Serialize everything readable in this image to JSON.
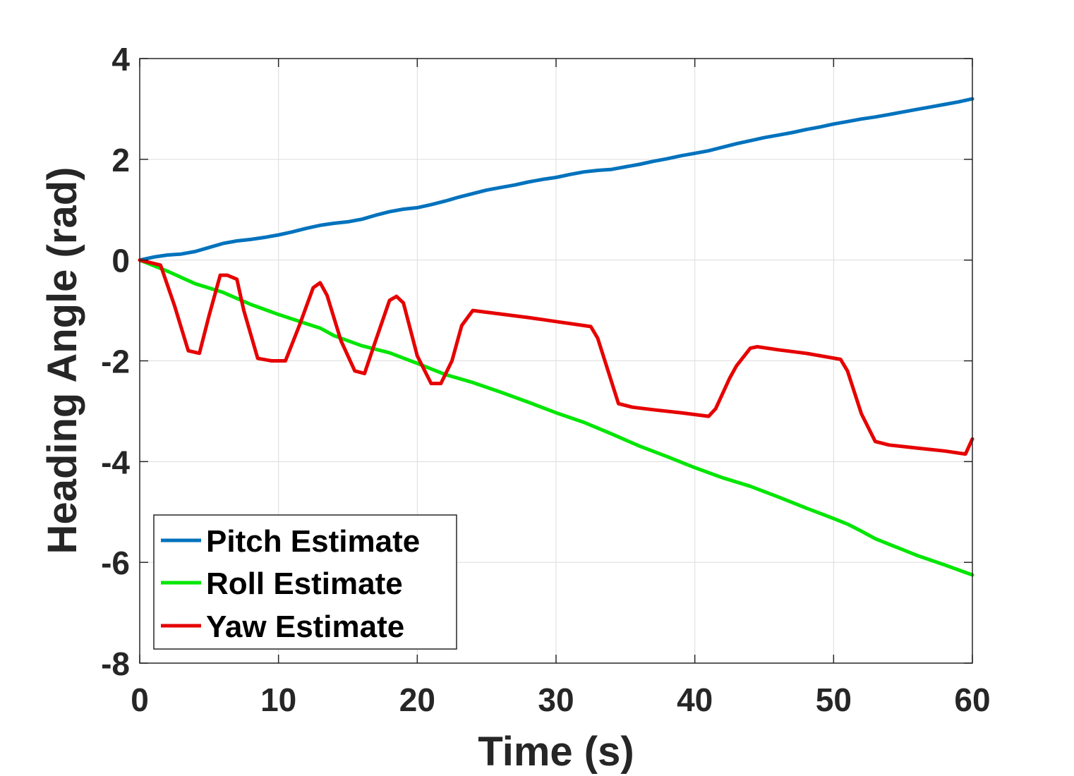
{
  "chart_data": {
    "type": "line",
    "xlabel": "Time (s)",
    "ylabel": "Heading Angle (rad)",
    "xlim": [
      0,
      60
    ],
    "ylim": [
      -8,
      4
    ],
    "xticks": [
      0,
      10,
      20,
      30,
      40,
      50,
      60
    ],
    "yticks": [
      -8,
      -6,
      -4,
      -2,
      0,
      2,
      4
    ],
    "xtick_labels": [
      "0",
      "10",
      "20",
      "30",
      "40",
      "50",
      "60"
    ],
    "ytick_labels": [
      "-8",
      "-6",
      "-4",
      "-2",
      "0",
      "2",
      "4"
    ],
    "grid": true,
    "legend_position": "bottom-left",
    "series": [
      {
        "name": "Pitch Estimate",
        "color": "#0072BD",
        "x": [
          0,
          1,
          2,
          3,
          4,
          5,
          6,
          7,
          8,
          9,
          10,
          11,
          12,
          13,
          14,
          15,
          16,
          17,
          18,
          19,
          20,
          21,
          22,
          23,
          24,
          25,
          26,
          27,
          28,
          29,
          30,
          31,
          32,
          33,
          34,
          35,
          36,
          37,
          38,
          39,
          40,
          41,
          42,
          43,
          44,
          45,
          46,
          47,
          48,
          49,
          50,
          51,
          52,
          53,
          54,
          55,
          56,
          57,
          58,
          59,
          60
        ],
        "y": [
          0,
          0.06,
          0.1,
          0.12,
          0.17,
          0.25,
          0.33,
          0.38,
          0.41,
          0.45,
          0.5,
          0.56,
          0.63,
          0.69,
          0.73,
          0.76,
          0.81,
          0.89,
          0.96,
          1.01,
          1.04,
          1.1,
          1.17,
          1.25,
          1.32,
          1.39,
          1.44,
          1.49,
          1.55,
          1.6,
          1.64,
          1.7,
          1.75,
          1.78,
          1.8,
          1.85,
          1.9,
          1.96,
          2.01,
          2.07,
          2.12,
          2.17,
          2.24,
          2.31,
          2.37,
          2.43,
          2.48,
          2.53,
          2.59,
          2.64,
          2.7,
          2.75,
          2.8,
          2.84,
          2.89,
          2.94,
          2.99,
          3.04,
          3.09,
          3.14,
          3.2
        ]
      },
      {
        "name": "Roll Estimate",
        "color": "#00E600",
        "x": [
          0,
          2,
          4,
          6,
          8,
          10,
          12,
          13,
          14,
          16,
          18,
          20,
          22,
          24,
          26,
          28,
          30,
          32,
          34,
          36,
          38,
          40,
          42,
          44,
          46,
          48,
          50,
          51,
          52,
          53,
          54,
          56,
          58,
          60
        ],
        "y": [
          0,
          -0.22,
          -0.47,
          -0.64,
          -0.88,
          -1.08,
          -1.26,
          -1.35,
          -1.5,
          -1.7,
          -1.84,
          -2.05,
          -2.27,
          -2.43,
          -2.62,
          -2.82,
          -3.03,
          -3.22,
          -3.45,
          -3.69,
          -3.9,
          -4.12,
          -4.32,
          -4.49,
          -4.7,
          -4.92,
          -5.13,
          -5.24,
          -5.38,
          -5.53,
          -5.64,
          -5.86,
          -6.05,
          -6.25
        ]
      },
      {
        "name": "Yaw Estimate",
        "color": "#E60000",
        "x": [
          0,
          1.5,
          2.5,
          3.5,
          4.3,
          5,
          5.8,
          6.3,
          7,
          7.5,
          8.5,
          9.5,
          10.5,
          11.5,
          12.5,
          13,
          13.5,
          14.5,
          15.5,
          16.2,
          17,
          18,
          18.5,
          19,
          20,
          21,
          21.7,
          22.5,
          23.2,
          24,
          26,
          28,
          30,
          32.5,
          33,
          34.5,
          35.5,
          37,
          39,
          41,
          41.5,
          42.5,
          43,
          44,
          44.5,
          46,
          48,
          50.5,
          51,
          52,
          53,
          54,
          56,
          58,
          59.5,
          60
        ],
        "y": [
          0,
          -0.1,
          -0.9,
          -1.8,
          -1.85,
          -1.1,
          -0.3,
          -0.3,
          -0.38,
          -1.0,
          -1.95,
          -2.0,
          -2.0,
          -1.3,
          -0.55,
          -0.45,
          -0.7,
          -1.6,
          -2.2,
          -2.25,
          -1.6,
          -0.8,
          -0.72,
          -0.85,
          -1.9,
          -2.45,
          -2.45,
          -2.0,
          -1.3,
          -1.0,
          -1.07,
          -1.14,
          -1.22,
          -1.32,
          -1.55,
          -2.85,
          -2.92,
          -2.97,
          -3.03,
          -3.1,
          -2.95,
          -2.35,
          -2.1,
          -1.75,
          -1.72,
          -1.78,
          -1.85,
          -1.97,
          -2.2,
          -3.05,
          -3.6,
          -3.67,
          -3.73,
          -3.79,
          -3.85,
          -3.55
        ]
      }
    ]
  }
}
